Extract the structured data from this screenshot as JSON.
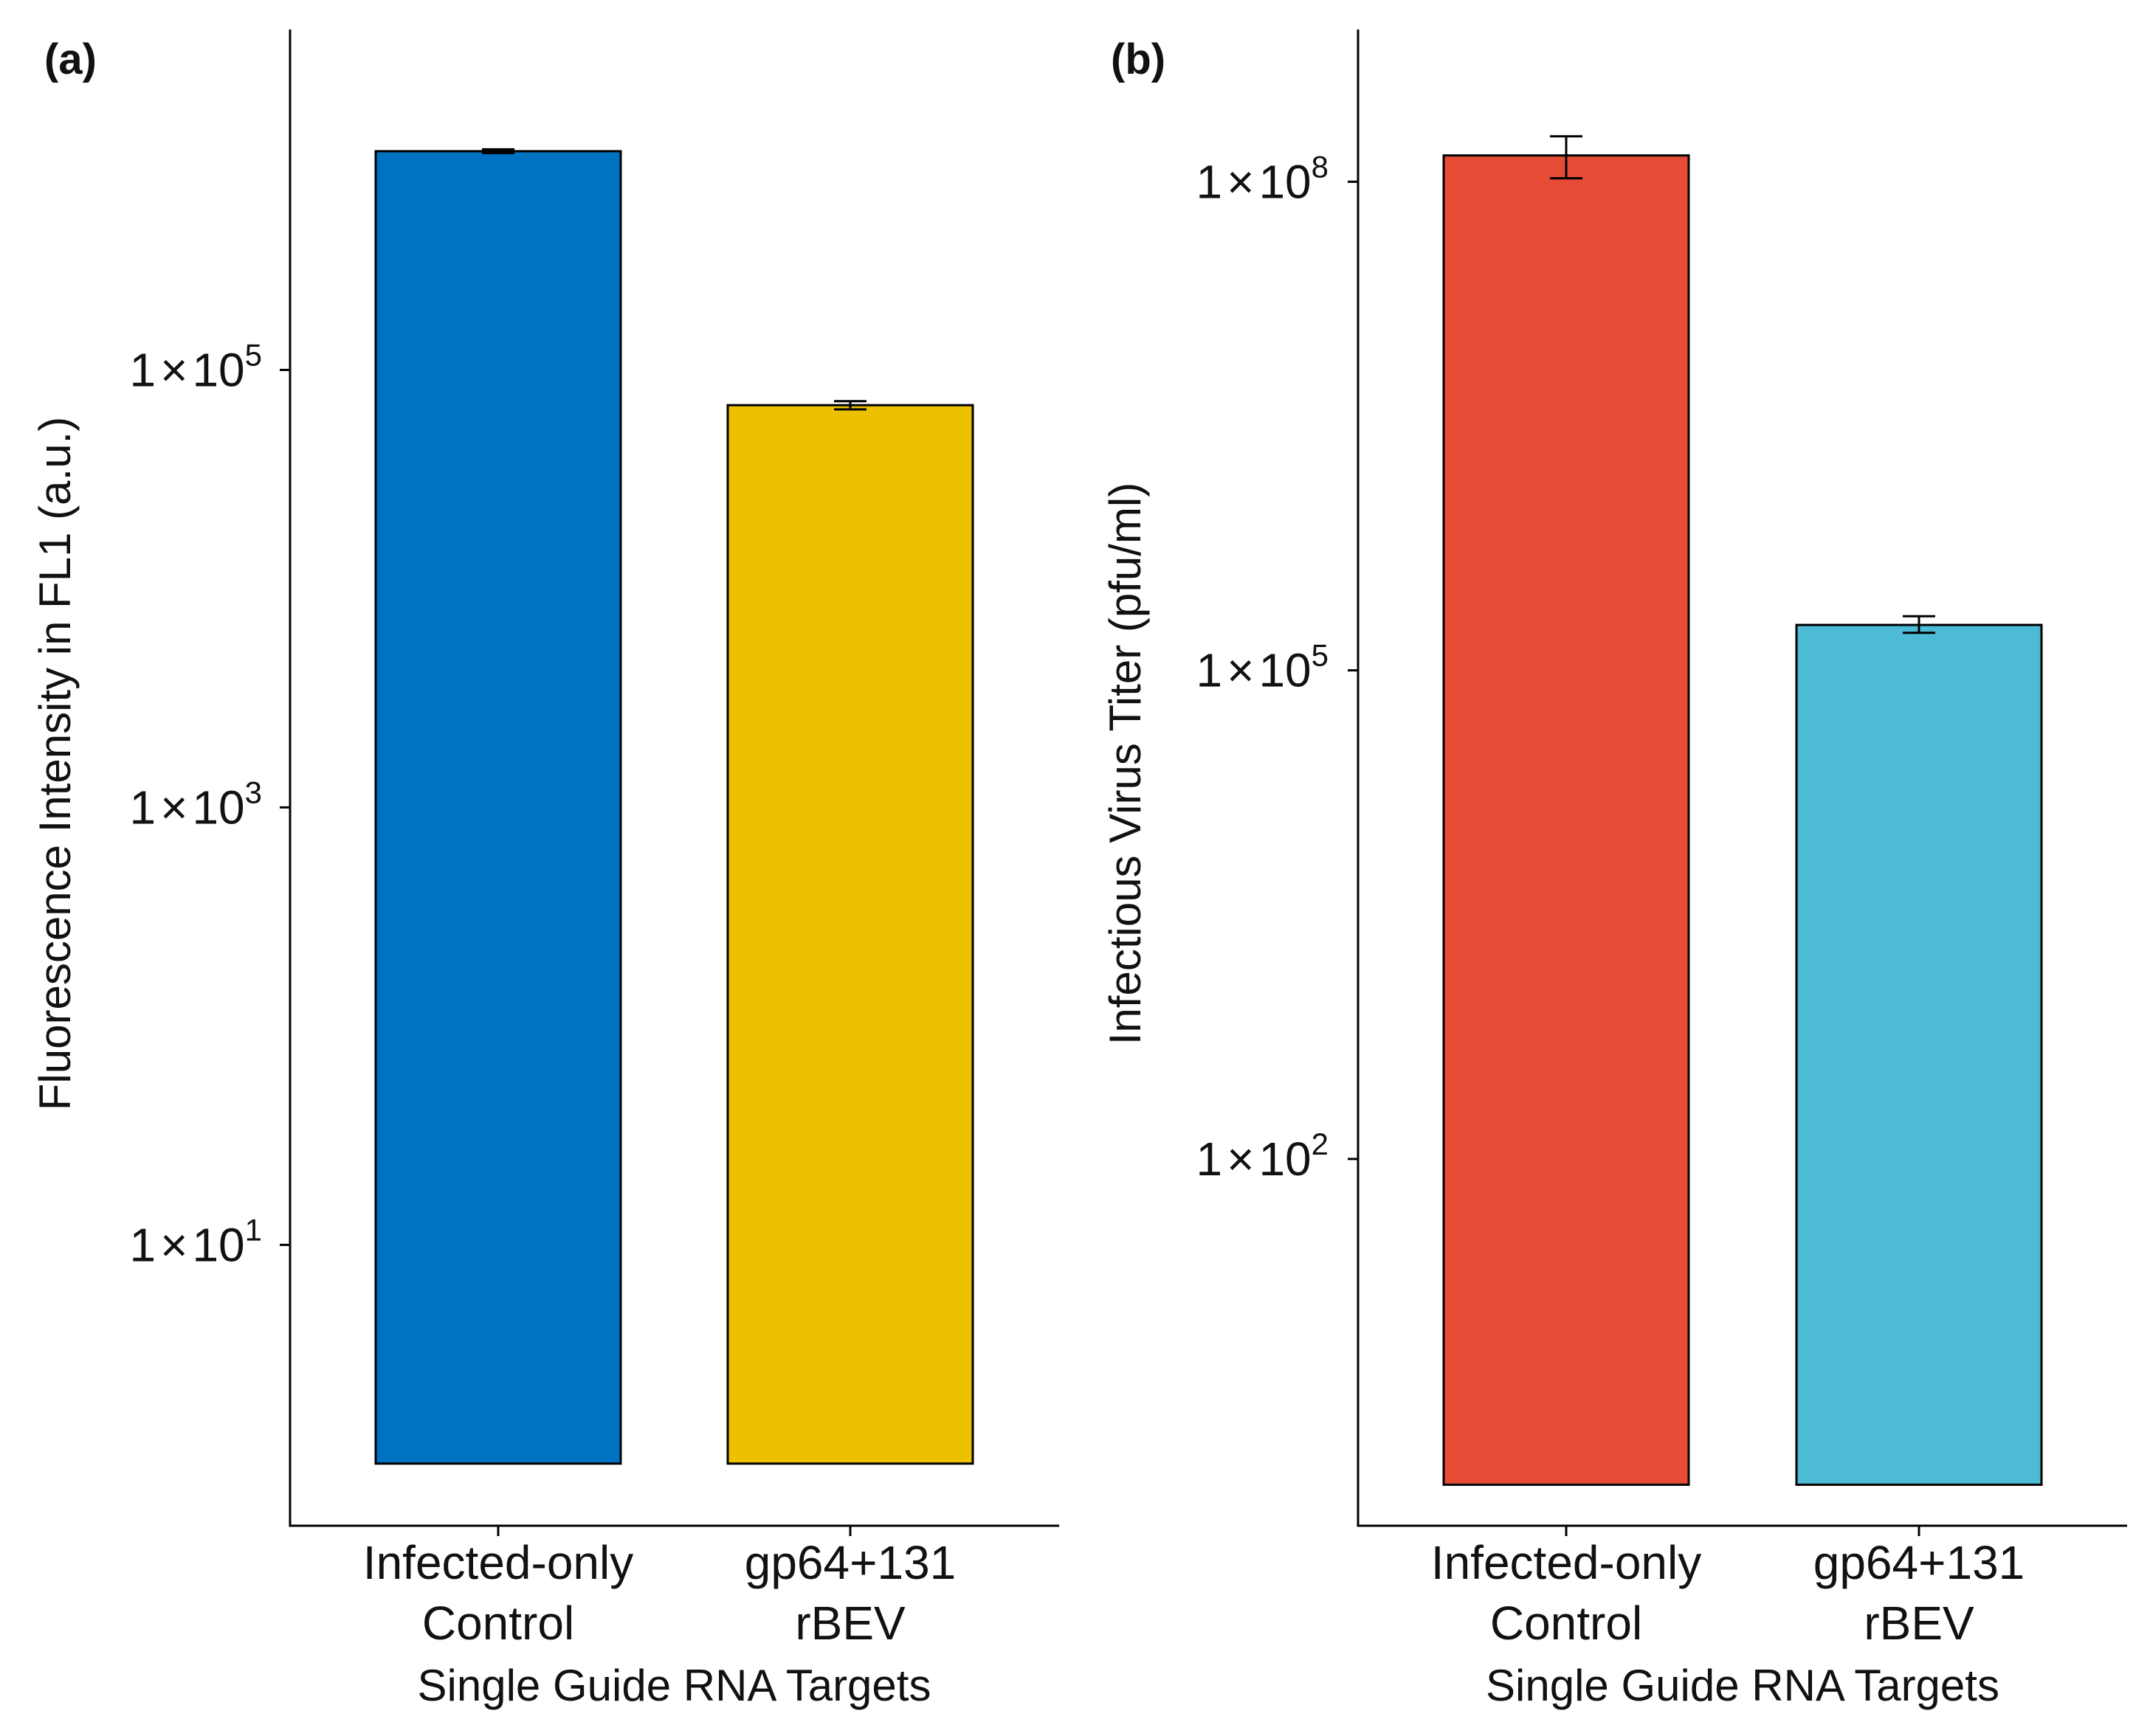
{
  "figure": {
    "panels": [
      "(a)",
      "(b)"
    ]
  },
  "chart_data": [
    {
      "panel": "(a)",
      "type": "bar",
      "title": "",
      "xlabel": "Single Guide RNA Targets",
      "ylabel": "Fluorescence Intensity in FL1 (a.u.)",
      "y_scale": "log10",
      "ylim": [
        0.52,
        3600000
      ],
      "bar_baseline": 1,
      "categories": [
        {
          "lines": [
            "Infected-only",
            "Control"
          ],
          "color": "#0072C2"
        },
        {
          "lines": [
            "gp64+131",
            "rBEV"
          ],
          "color": "#EDC100"
        }
      ],
      "values": [
        1000000,
        69000
      ],
      "error_low": [
        980000,
        66000
      ],
      "error_high": [
        1020000,
        72000
      ],
      "y_ticks": [
        {
          "value": 10,
          "mantissa": "1",
          "times": "×",
          "base": "10",
          "exp": "1"
        },
        {
          "value": 1000,
          "mantissa": "1",
          "times": "×",
          "base": "10",
          "exp": "3"
        },
        {
          "value": 100000,
          "mantissa": "1",
          "times": "×",
          "base": "10",
          "exp": "5"
        }
      ],
      "grid": false,
      "legend": "none"
    },
    {
      "panel": "(b)",
      "type": "bar",
      "title": "",
      "xlabel": "Single Guide RNA Targets",
      "ylabel": "Infectious Virus Titer (pfu/ml)",
      "y_scale": "log10",
      "ylim": [
        0.56,
        860000000
      ],
      "bar_baseline": 1,
      "categories": [
        {
          "lines": [
            "Infected-only",
            "Control"
          ],
          "color": "#E64B35"
        },
        {
          "lines": [
            "gp64+131",
            "rBEV"
          ],
          "color": "#4DBBD5"
        }
      ],
      "values": [
        145000000,
        190000
      ],
      "error_low": [
        105000000,
        170000
      ],
      "error_high": [
        190000000,
        215000
      ],
      "y_ticks": [
        {
          "value": 100,
          "mantissa": "1",
          "times": "×",
          "base": "10",
          "exp": "2"
        },
        {
          "value": 100000,
          "mantissa": "1",
          "times": "×",
          "base": "10",
          "exp": "5"
        },
        {
          "value": 100000000,
          "mantissa": "1",
          "times": "×",
          "base": "10",
          "exp": "8"
        }
      ],
      "grid": false,
      "legend": "none"
    }
  ]
}
